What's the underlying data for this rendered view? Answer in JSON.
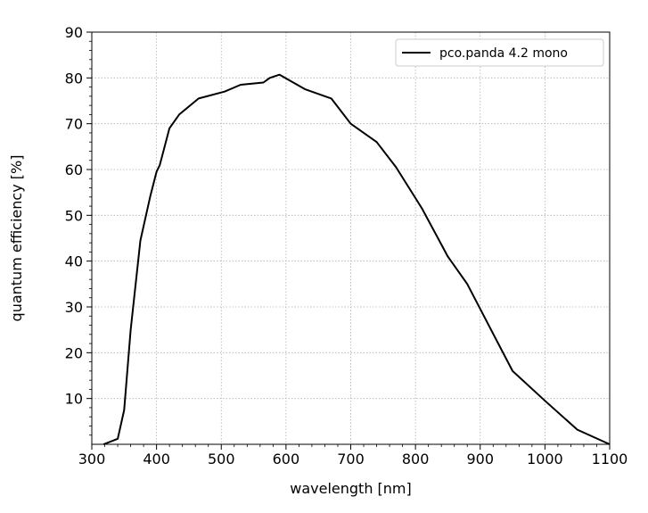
{
  "chart_data": {
    "type": "line",
    "title": "",
    "xlabel": "wavelength [nm]",
    "ylabel": "quantum efficiency [%]",
    "xlim": [
      300,
      1100
    ],
    "ylim": [
      0,
      90
    ],
    "xticks": [
      300,
      400,
      500,
      600,
      700,
      800,
      900,
      1000,
      1100
    ],
    "yticks": [
      10,
      20,
      30,
      40,
      50,
      60,
      70,
      80,
      90
    ],
    "grid": true,
    "legend_position": "top-right",
    "series": [
      {
        "name": "pco.panda 4.2 mono",
        "color": "#000000",
        "x": [
          318,
          340,
          350,
          360,
          375,
          390,
          400,
          405,
          420,
          435,
          465,
          505,
          530,
          565,
          575,
          590,
          630,
          670,
          700,
          740,
          770,
          810,
          850,
          880,
          915,
          950,
          1000,
          1050,
          1100
        ],
        "y": [
          0,
          1.2,
          7.5,
          25,
          44.5,
          54,
          59.5,
          61,
          69,
          72,
          75.5,
          77,
          78.5,
          79,
          80,
          80.7,
          77.5,
          75.5,
          70,
          66,
          60.5,
          51.5,
          41,
          35,
          25.5,
          16,
          9.5,
          3.2,
          0
        ]
      }
    ]
  }
}
